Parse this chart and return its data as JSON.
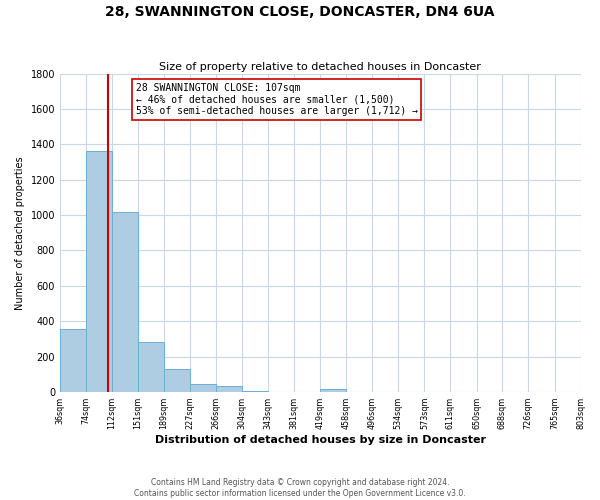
{
  "title": "28, SWANNINGTON CLOSE, DONCASTER, DN4 6UA",
  "subtitle": "Size of property relative to detached houses in Doncaster",
  "xlabel": "Distribution of detached houses by size in Doncaster",
  "ylabel": "Number of detached properties",
  "bar_edges": [
    36,
    74,
    112,
    151,
    189,
    227,
    266,
    304,
    343,
    381,
    419,
    458,
    496,
    534,
    573,
    611,
    650,
    688,
    726,
    765,
    803
  ],
  "bar_heights": [
    355,
    1360,
    1015,
    285,
    130,
    45,
    35,
    5,
    0,
    0,
    15,
    0,
    0,
    0,
    0,
    0,
    0,
    0,
    0,
    0
  ],
  "bar_color": "#aecde3",
  "bar_edge_color": "#6aafd4",
  "property_line_x": 107,
  "property_line_color": "#cc0000",
  "annotation_title": "28 SWANNINGTON CLOSE: 107sqm",
  "annotation_line1": "← 46% of detached houses are smaller (1,500)",
  "annotation_line2": "53% of semi-detached houses are larger (1,712) →",
  "annotation_box_color": "#ffffff",
  "annotation_box_edge": "#cc0000",
  "ylim": [
    0,
    1800
  ],
  "yticks": [
    0,
    200,
    400,
    600,
    800,
    1000,
    1200,
    1400,
    1600,
    1800
  ],
  "tick_labels": [
    "36sqm",
    "74sqm",
    "112sqm",
    "151sqm",
    "189sqm",
    "227sqm",
    "266sqm",
    "304sqm",
    "343sqm",
    "381sqm",
    "419sqm",
    "458sqm",
    "496sqm",
    "534sqm",
    "573sqm",
    "611sqm",
    "650sqm",
    "688sqm",
    "726sqm",
    "765sqm",
    "803sqm"
  ],
  "footer_line1": "Contains HM Land Registry data © Crown copyright and database right 2024.",
  "footer_line2": "Contains public sector information licensed under the Open Government Licence v3.0.",
  "bg_color": "#ffffff",
  "grid_color": "#c8d8e8"
}
